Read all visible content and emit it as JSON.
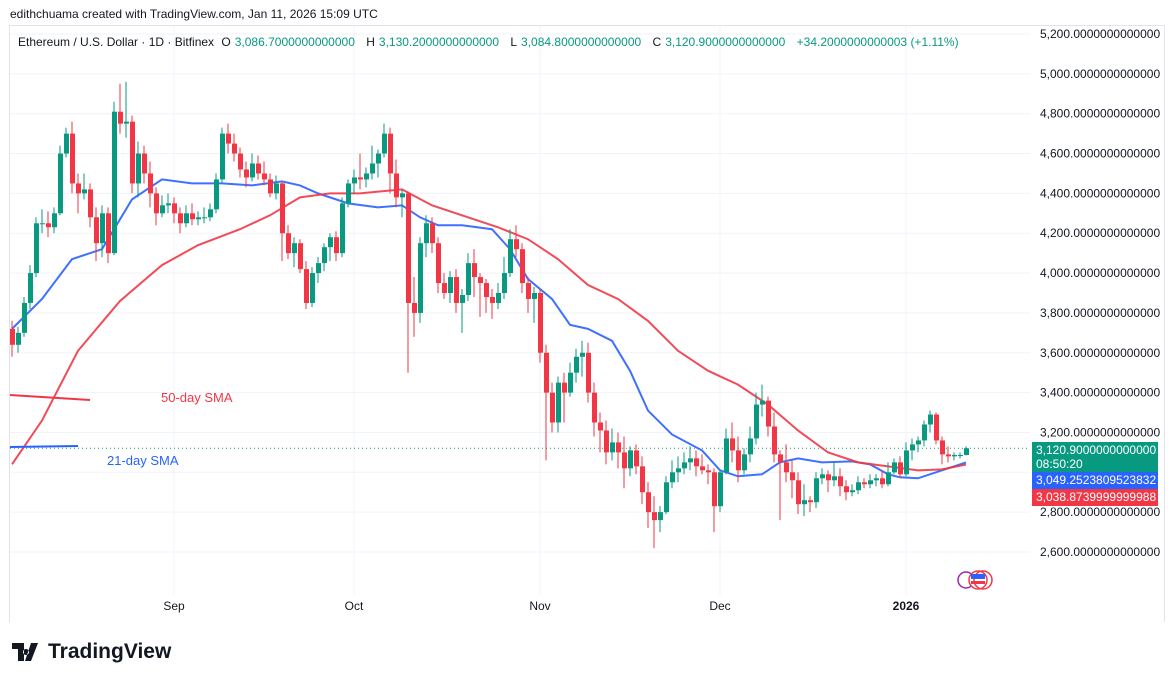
{
  "credit": "edithchuama created with TradingView.com, Jan 11, 2026 15:09 UTC",
  "header": {
    "symbol": "Ethereum / U.S. Dollar · 1D · Bitfinex",
    "o_label": "O",
    "o": "3,086.7000000000000",
    "h_label": "H",
    "h": "3,130.2000000000000",
    "l_label": "L",
    "l": "3,084.8000000000000",
    "c_label": "C",
    "c": "3,120.9000000000000",
    "change": "+34.2000000000003 (+1.11%)"
  },
  "colors": {
    "up": "#089981",
    "down": "#f23645",
    "sma21": "#2962ff",
    "sma50": "#f23645",
    "grid": "#f0f3fa"
  },
  "price_tags": {
    "last": "3,120.9000000000000",
    "countdown": "08:50:20",
    "sma21": "3,049.2523809523832",
    "sma50": "3,038.8739999999988"
  },
  "annotations": {
    "sma50_label": "50-day SMA",
    "sma21_label": "21-day SMA"
  },
  "brand": "TradingView",
  "chart_data": {
    "type": "candlestick",
    "symbol": "ETH/USD",
    "interval": "1D",
    "ylim": [
      2500,
      5250
    ],
    "y_ticks": [
      "5,200.0000000000000",
      "5,000.0000000000000",
      "4,800.0000000000000",
      "4,600.0000000000000",
      "4,400.0000000000000",
      "4,200.0000000000000",
      "4,000.0000000000000",
      "3,800.0000000000000",
      "3,600.0000000000000",
      "3,400.0000000000000",
      "3,200.0000000000000",
      "2,800.0000000000000",
      "2,600.0000000000000"
    ],
    "y_tick_values": [
      5200,
      5000,
      4800,
      4600,
      4400,
      4200,
      4000,
      3800,
      3600,
      3400,
      3200,
      2800,
      2600
    ],
    "x_ticks": [
      {
        "label": "Sep",
        "index": 27
      },
      {
        "label": "Oct",
        "index": 57
      },
      {
        "label": "Nov",
        "index": 88
      },
      {
        "label": "Dec",
        "index": 118
      },
      {
        "label": "2026",
        "index": 149
      }
    ],
    "grid": true,
    "last_price": 3120.9,
    "ohlc": [
      [
        3720,
        3760,
        3580,
        3640
      ],
      [
        3640,
        3730,
        3600,
        3700
      ],
      [
        3700,
        3880,
        3680,
        3850
      ],
      [
        3850,
        4040,
        3820,
        4000
      ],
      [
        4000,
        4280,
        3980,
        4250
      ],
      [
        4250,
        4320,
        4200,
        4250
      ],
      [
        4250,
        4310,
        4180,
        4230
      ],
      [
        4230,
        4330,
        4200,
        4300
      ],
      [
        4300,
        4640,
        4290,
        4600
      ],
      [
        4600,
        4730,
        4580,
        4700
      ],
      [
        4700,
        4760,
        4400,
        4450
      ],
      [
        4450,
        4500,
        4300,
        4400
      ],
      [
        4400,
        4500,
        4370,
        4420
      ],
      [
        4420,
        4450,
        4230,
        4280
      ],
      [
        4280,
        4330,
        4060,
        4150
      ],
      [
        4150,
        4340,
        4080,
        4300
      ],
      [
        4300,
        4330,
        4050,
        4100
      ],
      [
        4100,
        4860,
        4090,
        4810
      ],
      [
        4810,
        4950,
        4700,
        4750
      ],
      [
        4750,
        4960,
        4680,
        4760
      ],
      [
        4760,
        4790,
        4400,
        4450
      ],
      [
        4450,
        4660,
        4380,
        4600
      ],
      [
        4600,
        4640,
        4450,
        4500
      ],
      [
        4500,
        4560,
        4330,
        4400
      ],
      [
        4400,
        4430,
        4240,
        4300
      ],
      [
        4300,
        4390,
        4280,
        4340
      ],
      [
        4340,
        4400,
        4300,
        4350
      ],
      [
        4350,
        4380,
        4250,
        4300
      ],
      [
        4300,
        4330,
        4200,
        4250
      ],
      [
        4250,
        4340,
        4230,
        4300
      ],
      [
        4300,
        4350,
        4240,
        4270
      ],
      [
        4270,
        4310,
        4240,
        4280
      ],
      [
        4280,
        4330,
        4250,
        4280
      ],
      [
        4280,
        4350,
        4260,
        4320
      ],
      [
        4320,
        4500,
        4300,
        4470
      ],
      [
        4470,
        4730,
        4450,
        4700
      ],
      [
        4700,
        4750,
        4600,
        4650
      ],
      [
        4650,
        4700,
        4560,
        4600
      ],
      [
        4600,
        4630,
        4480,
        4520
      ],
      [
        4520,
        4560,
        4430,
        4480
      ],
      [
        4480,
        4600,
        4460,
        4550
      ],
      [
        4550,
        4590,
        4470,
        4500
      ],
      [
        4500,
        4560,
        4440,
        4470
      ],
      [
        4470,
        4500,
        4380,
        4400
      ],
      [
        4400,
        4490,
        4370,
        4450
      ],
      [
        4450,
        4460,
        4060,
        4200
      ],
      [
        4200,
        4240,
        4070,
        4100
      ],
      [
        4100,
        4180,
        4030,
        4150
      ],
      [
        4150,
        4170,
        4000,
        4020
      ],
      [
        4020,
        4060,
        3820,
        3850
      ],
      [
        3850,
        4030,
        3830,
        4000
      ],
      [
        4000,
        4080,
        3950,
        4050
      ],
      [
        4050,
        4150,
        4010,
        4130
      ],
      [
        4130,
        4200,
        4060,
        4180
      ],
      [
        4180,
        4210,
        4060,
        4100
      ],
      [
        4100,
        4380,
        4080,
        4350
      ],
      [
        4350,
        4470,
        4330,
        4450
      ],
      [
        4450,
        4520,
        4400,
        4480
      ],
      [
        4480,
        4600,
        4420,
        4470
      ],
      [
        4470,
        4530,
        4430,
        4500
      ],
      [
        4500,
        4640,
        4470,
        4550
      ],
      [
        4550,
        4620,
        4480,
        4600
      ],
      [
        4600,
        4750,
        4580,
        4700
      ],
      [
        4700,
        4730,
        4400,
        4500
      ],
      [
        4500,
        4570,
        4330,
        4380
      ],
      [
        4380,
        4420,
        4280,
        4400
      ],
      [
        4400,
        4410,
        3500,
        3850
      ],
      [
        3850,
        3980,
        3680,
        3800
      ],
      [
        3800,
        4180,
        3750,
        4150
      ],
      [
        4150,
        4290,
        4080,
        4250
      ],
      [
        4250,
        4280,
        4100,
        4150
      ],
      [
        4150,
        4180,
        3900,
        3950
      ],
      [
        3950,
        4000,
        3870,
        3900
      ],
      [
        3900,
        4010,
        3850,
        3980
      ],
      [
        3980,
        4020,
        3800,
        3850
      ],
      [
        3850,
        3920,
        3700,
        3890
      ],
      [
        3890,
        4100,
        3860,
        4050
      ],
      [
        4050,
        4120,
        3880,
        3980
      ],
      [
        3980,
        4000,
        3780,
        3950
      ],
      [
        3950,
        3970,
        3800,
        3880
      ],
      [
        3880,
        3920,
        3770,
        3850
      ],
      [
        3850,
        3950,
        3820,
        3900
      ],
      [
        3900,
        4080,
        3870,
        4000
      ],
      [
        4000,
        4220,
        3980,
        4170
      ],
      [
        4170,
        4240,
        4080,
        4120
      ],
      [
        4120,
        4150,
        3900,
        3950
      ],
      [
        3950,
        3980,
        3800,
        3870
      ],
      [
        3870,
        3930,
        3750,
        3900
      ],
      [
        3900,
        3920,
        3550,
        3600
      ],
      [
        3600,
        3640,
        3060,
        3400
      ],
      [
        3400,
        3450,
        3200,
        3250
      ],
      [
        3250,
        3480,
        3200,
        3450
      ],
      [
        3450,
        3500,
        3250,
        3400
      ],
      [
        3400,
        3550,
        3380,
        3500
      ],
      [
        3500,
        3620,
        3450,
        3580
      ],
      [
        3580,
        3660,
        3480,
        3600
      ],
      [
        3600,
        3650,
        3350,
        3400
      ],
      [
        3400,
        3450,
        3180,
        3250
      ],
      [
        3250,
        3300,
        3100,
        3210
      ],
      [
        3210,
        3260,
        3040,
        3100
      ],
      [
        3100,
        3220,
        3060,
        3150
      ],
      [
        3150,
        3200,
        3020,
        3100
      ],
      [
        3100,
        3180,
        2920,
        3020
      ],
      [
        3020,
        3130,
        2980,
        3110
      ],
      [
        3110,
        3140,
        2990,
        3030
      ],
      [
        3030,
        3080,
        2840,
        2900
      ],
      [
        2900,
        2950,
        2720,
        2800
      ],
      [
        2800,
        2880,
        2620,
        2760
      ],
      [
        2760,
        2830,
        2700,
        2800
      ],
      [
        2800,
        2980,
        2790,
        2950
      ],
      [
        2950,
        3060,
        2920,
        3000
      ],
      [
        3000,
        3080,
        2950,
        3020
      ],
      [
        3020,
        3100,
        2990,
        3050
      ],
      [
        3050,
        3130,
        3010,
        3070
      ],
      [
        3070,
        3110,
        2980,
        3030
      ],
      [
        3030,
        3090,
        2990,
        3010
      ],
      [
        3010,
        3040,
        2940,
        3000
      ],
      [
        3000,
        3020,
        2700,
        2830
      ],
      [
        2830,
        3010,
        2800,
        3000
      ],
      [
        3000,
        3220,
        2990,
        3170
      ],
      [
        3170,
        3250,
        3050,
        3110
      ],
      [
        3110,
        3180,
        2950,
        3010
      ],
      [
        3010,
        3120,
        2990,
        3090
      ],
      [
        3090,
        3230,
        3050,
        3170
      ],
      [
        3170,
        3400,
        3140,
        3340
      ],
      [
        3340,
        3440,
        3280,
        3360
      ],
      [
        3360,
        3380,
        3180,
        3230
      ],
      [
        3230,
        3300,
        3050,
        3090
      ],
      [
        3090,
        3110,
        2760,
        3050
      ],
      [
        3050,
        3140,
        2950,
        3000
      ],
      [
        3000,
        3060,
        2870,
        2960
      ],
      [
        2960,
        3000,
        2790,
        2840
      ],
      [
        2840,
        2940,
        2780,
        2860
      ],
      [
        2860,
        2880,
        2800,
        2850
      ],
      [
        2850,
        3000,
        2820,
        2970
      ],
      [
        2970,
        3020,
        2940,
        2990
      ],
      [
        2990,
        3010,
        2900,
        2960
      ],
      [
        2960,
        3050,
        2930,
        2980
      ],
      [
        2980,
        3020,
        2880,
        2930
      ],
      [
        2930,
        2960,
        2860,
        2900
      ],
      [
        2900,
        2940,
        2880,
        2910
      ],
      [
        2910,
        2980,
        2890,
        2950
      ],
      [
        2950,
        2970,
        2920,
        2940
      ],
      [
        2940,
        2990,
        2920,
        2960
      ],
      [
        2960,
        2990,
        2930,
        2970
      ],
      [
        2970,
        3010,
        2920,
        2940
      ],
      [
        2940,
        3050,
        2930,
        3000
      ],
      [
        3000,
        3070,
        2990,
        3050
      ],
      [
        3050,
        3080,
        2970,
        2990
      ],
      [
        2990,
        3150,
        2980,
        3110
      ],
      [
        3110,
        3170,
        3060,
        3140
      ],
      [
        3140,
        3180,
        3100,
        3160
      ],
      [
        3160,
        3260,
        3130,
        3240
      ],
      [
        3240,
        3310,
        3200,
        3290
      ],
      [
        3290,
        3300,
        3140,
        3160
      ],
      [
        3160,
        3180,
        3040,
        3090
      ],
      [
        3090,
        3130,
        3050,
        3080
      ],
      [
        3080,
        3100,
        3060,
        3087
      ],
      [
        3087,
        3100,
        3070,
        3087
      ],
      [
        3086.7,
        3130.2,
        3084.8,
        3120.9
      ]
    ],
    "series": [
      {
        "name": "21-day SMA",
        "points": [
          [
            0,
            3720
          ],
          [
            5,
            3870
          ],
          [
            10,
            4070
          ],
          [
            15,
            4120
          ],
          [
            20,
            4370
          ],
          [
            25,
            4470
          ],
          [
            30,
            4450
          ],
          [
            35,
            4450
          ],
          [
            40,
            4440
          ],
          [
            45,
            4460
          ],
          [
            48,
            4440
          ],
          [
            51,
            4400
          ],
          [
            56,
            4350
          ],
          [
            61,
            4330
          ],
          [
            65,
            4340
          ],
          [
            68,
            4280
          ],
          [
            71,
            4240
          ],
          [
            75,
            4240
          ],
          [
            80,
            4220
          ],
          [
            83,
            4120
          ],
          [
            86,
            3970
          ],
          [
            90,
            3870
          ],
          [
            93,
            3740
          ],
          [
            96,
            3720
          ],
          [
            100,
            3660
          ],
          [
            103,
            3510
          ],
          [
            106,
            3310
          ],
          [
            110,
            3190
          ],
          [
            115,
            3110
          ],
          [
            118,
            3010
          ],
          [
            121,
            2980
          ],
          [
            125,
            2990
          ],
          [
            128,
            3050
          ],
          [
            131,
            3070
          ],
          [
            135,
            3050
          ],
          [
            140,
            3055
          ],
          [
            143,
            3040
          ],
          [
            146,
            2990
          ],
          [
            148,
            2975
          ],
          [
            151,
            2970
          ],
          [
            155,
            3010
          ],
          [
            159,
            3049.25
          ]
        ]
      },
      {
        "name": "50-day SMA",
        "points": [
          [
            0,
            3040
          ],
          [
            5,
            3260
          ],
          [
            11,
            3610
          ],
          [
            18,
            3860
          ],
          [
            25,
            4040
          ],
          [
            31,
            4140
          ],
          [
            38,
            4220
          ],
          [
            43,
            4290
          ],
          [
            48,
            4380
          ],
          [
            53,
            4400
          ],
          [
            58,
            4400
          ],
          [
            65,
            4420
          ],
          [
            70,
            4340
          ],
          [
            75,
            4290
          ],
          [
            81,
            4230
          ],
          [
            86,
            4170
          ],
          [
            91,
            4070
          ],
          [
            96,
            3940
          ],
          [
            101,
            3870
          ],
          [
            106,
            3760
          ],
          [
            111,
            3610
          ],
          [
            116,
            3510
          ],
          [
            121,
            3440
          ],
          [
            126,
            3340
          ],
          [
            131,
            3210
          ],
          [
            136,
            3100
          ],
          [
            141,
            3050
          ],
          [
            146,
            3030
          ],
          [
            151,
            3010
          ],
          [
            155,
            3015
          ],
          [
            159,
            3038.87
          ]
        ]
      }
    ]
  }
}
